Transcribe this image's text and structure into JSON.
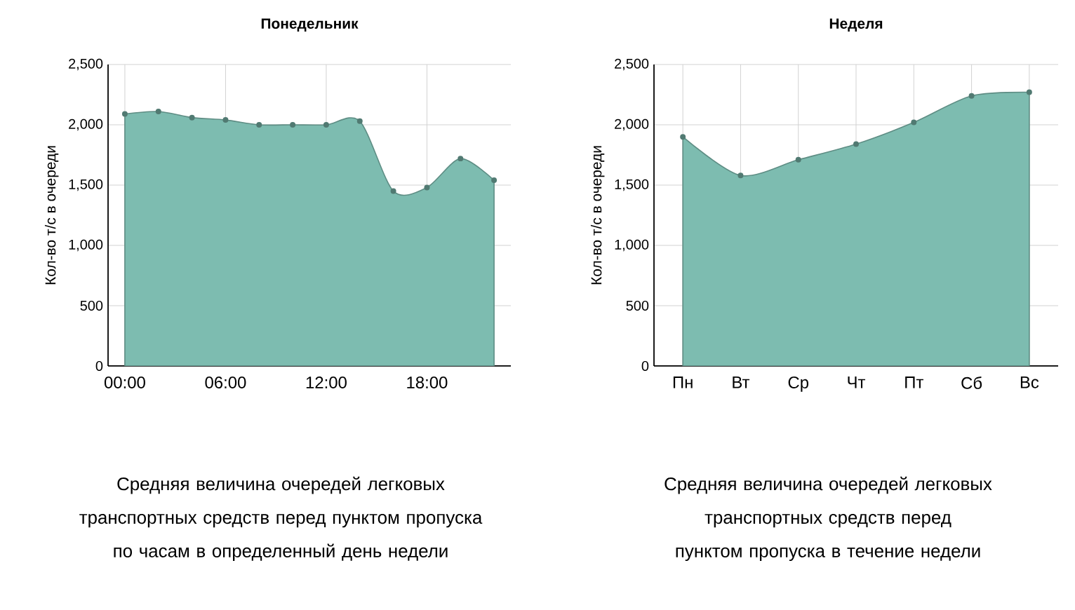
{
  "chart_data": [
    {
      "type": "area",
      "title": "Понедельник",
      "ylabel": "Кол-во т/с в очереди",
      "x": [
        0,
        2,
        4,
        6,
        8,
        10,
        12,
        14,
        16,
        18,
        20,
        22
      ],
      "values": [
        2090,
        2110,
        2060,
        2040,
        2000,
        2000,
        2000,
        2030,
        1450,
        1480,
        1720,
        1540
      ],
      "color": "#7dbcb0",
      "marker": "circle",
      "grid": true,
      "xlim": [
        -1,
        23
      ],
      "xticks": [
        {
          "value": 0,
          "label": "00:00"
        },
        {
          "value": 6,
          "label": "06:00"
        },
        {
          "value": 12,
          "label": "12:00"
        },
        {
          "value": 18,
          "label": "18:00"
        }
      ],
      "ylim": [
        0,
        2500
      ],
      "yticks": [
        0,
        500,
        {
          "value": 1000,
          "label": "1,000"
        },
        {
          "value": 1500,
          "label": "1,500"
        },
        {
          "value": 2000,
          "label": "2,000"
        },
        {
          "value": 2500,
          "label": "2,500"
        }
      ],
      "annotations": [
        "Средняя величина очередей легковых транспортных средств перед пунктом пропуска по часам в определенный день недели"
      ]
    },
    {
      "type": "area",
      "title": "Неделя",
      "ylabel": "Кол-во т/с в очереди",
      "categories": [
        "Пн",
        "Вт",
        "Ср",
        "Чт",
        "Пт",
        "Сб",
        "Вс"
      ],
      "values": [
        1900,
        1580,
        1710,
        1840,
        2020,
        2240,
        2270
      ],
      "color": "#7dbcb0",
      "marker": "circle",
      "grid": true,
      "ylim": [
        0,
        2500
      ],
      "yticks": [
        0,
        500,
        {
          "value": 1000,
          "label": "1,000"
        },
        {
          "value": 1500,
          "label": "1,500"
        },
        {
          "value": 2000,
          "label": "2,000"
        },
        {
          "value": 2500,
          "label": "2,500"
        }
      ],
      "annotations": [
        "Средняя величина очередей легковых транспортных средств перед пунктом пропуска в течение недели"
      ]
    }
  ]
}
